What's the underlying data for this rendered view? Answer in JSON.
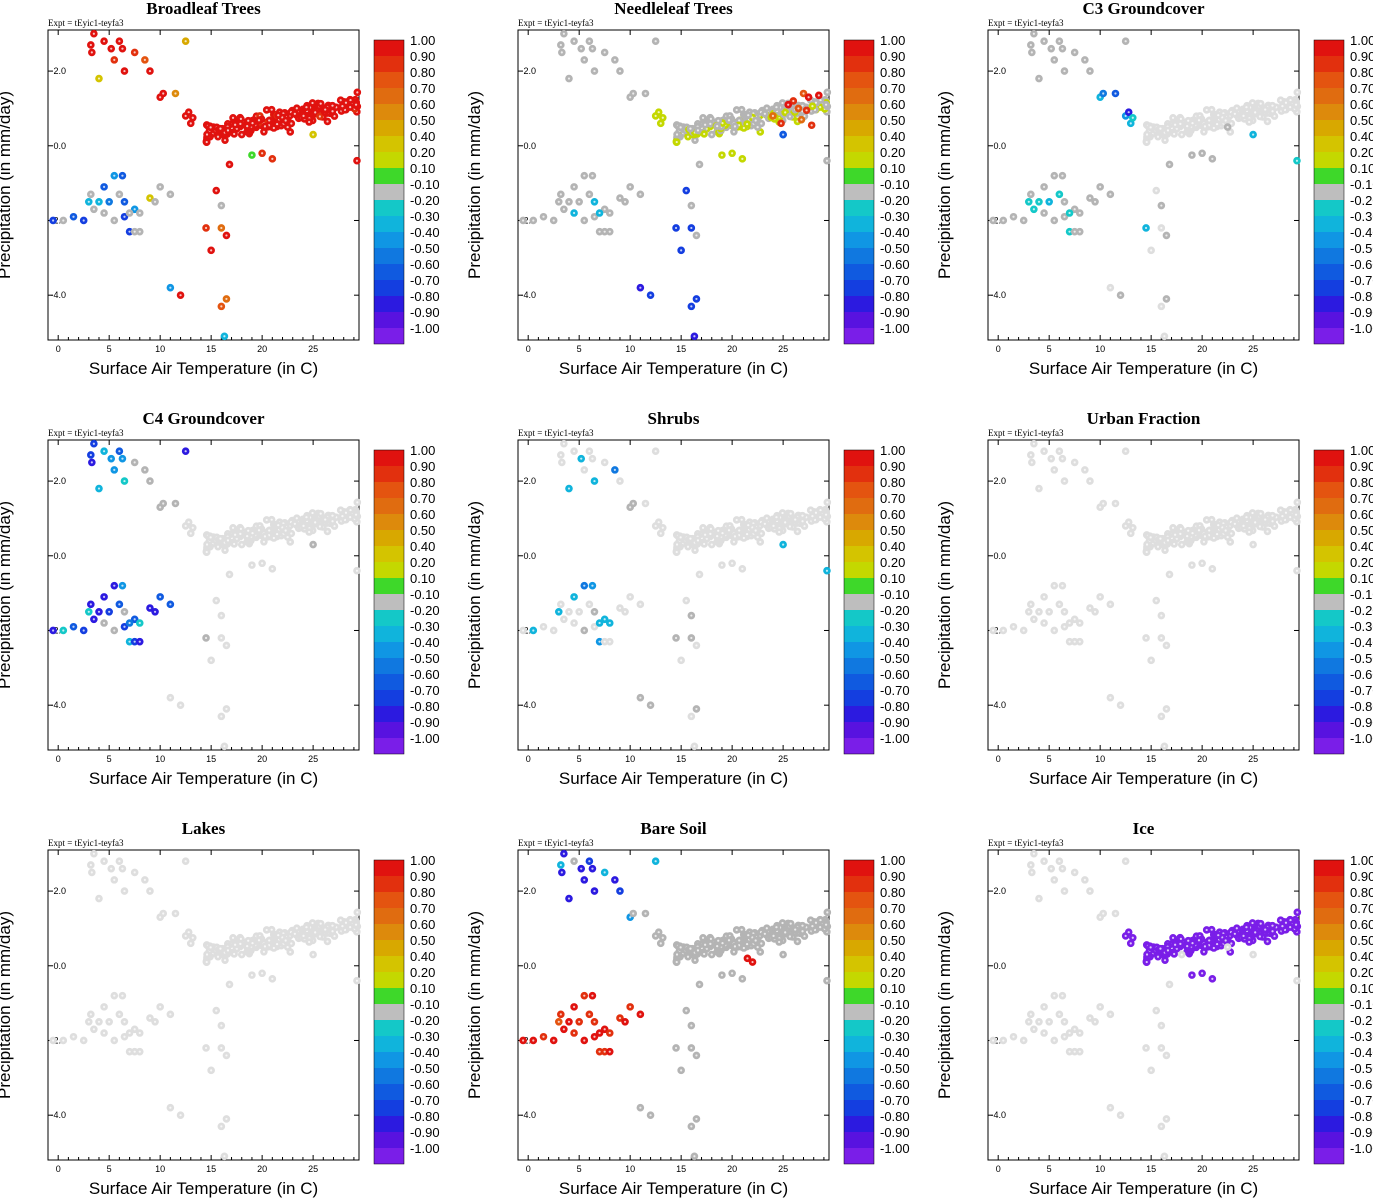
{
  "chart_data": [
    {
      "type": "scatter",
      "title": "Broadleaf Trees",
      "annotation": "Expt = tEyic1-teyfa3",
      "xlabel": "Surface Air Temperature (in C)",
      "ylabel": "Precipitation (in mm/day)",
      "warm_cluster_value": 0.95,
      "cold_values": [
        -0.7,
        -0.1,
        -0.6,
        -0.7,
        -0.35,
        -0.1,
        -0.35,
        -0.6,
        -0.5,
        -0.45,
        -0.1,
        -0.6,
        -0.7,
        -0.7,
        -0.45,
        -0.1,
        -0.1,
        -0.1,
        -0.1,
        -0.6,
        -0.1,
        -0.1,
        -0.1,
        0.3,
        -0.1,
        -0.1,
        -0.1
      ],
      "upper_values": [
        0.95,
        0.95,
        0.4,
        0.95,
        0.95,
        0.95,
        0.9,
        0.95,
        0.95,
        0.95,
        0.9,
        0.75,
        0.95,
        0.95,
        0.95,
        0.55,
        0.45
      ],
      "mid_values": [
        0.95,
        0.95,
        0.95,
        0.95,
        0.1,
        0.9,
        0.9
      ],
      "sparse_values": [
        0.95,
        0.7,
        0.95,
        0.8,
        0.65,
        -0.35,
        -0.4,
        0.95,
        0.9,
        0.95,
        0.95,
        -0.1
      ],
      "outlier_values": [
        0.3,
        0.95,
        0.95,
        0.95
      ]
    },
    {
      "type": "scatter",
      "title": "Needleleaf Trees",
      "annotation": "Expt = tEyic1-teyfa3",
      "xlabel": "Surface Air Temperature (in C)",
      "ylabel": "Precipitation (in mm/day)",
      "warm_cluster_value": -0.1,
      "cold_values": [
        -0.1,
        -0.1,
        -0.1,
        -0.1,
        -0.1,
        -0.1,
        -0.1,
        -0.1,
        -0.1,
        -0.1,
        -0.1,
        -0.1,
        -0.1,
        -0.1,
        -0.1,
        -0.1,
        -0.1,
        -0.35,
        -0.1,
        -0.35,
        -0.35,
        -0.1,
        -0.1,
        -0.1,
        -0.1,
        -0.1,
        -0.1
      ],
      "upper_values": [
        -0.1,
        -0.1,
        -0.1,
        -0.1,
        -0.1,
        -0.1,
        -0.1,
        -0.1,
        -0.1,
        -0.1,
        -0.1,
        -0.1,
        -0.1,
        -0.1,
        -0.1,
        -0.1,
        -0.1
      ],
      "mid_values": [
        0.15,
        0.15,
        0.15,
        0.15,
        0.15,
        0.15,
        0.15
      ],
      "sparse_values": [
        -0.7,
        -0.75,
        -0.7,
        -0.7,
        -0.75,
        -0.8,
        -0.8,
        -0.75,
        -0.75,
        -0.1,
        -0.1,
        -0.1
      ],
      "outlier_values": [
        -0.65,
        -0.1,
        -0.1,
        -0.1
      ],
      "green_band_value": 0.15,
      "hot_values": [
        0.9,
        0.75,
        0.8,
        0.95,
        0.65,
        0.95,
        0.7,
        0.9,
        0.95,
        -0.6,
        0.85,
        0.9
      ]
    },
    {
      "type": "scatter",
      "title": "C3 Groundcover",
      "annotation": "Expt = tEyic1-teyfa3",
      "xlabel": "Surface Air Temperature (in C)",
      "ylabel": "Precipitation (in mm/day)",
      "warm_cluster_value": -0.05,
      "cold_values": [
        -0.1,
        -0.1,
        -0.1,
        -0.1,
        -0.25,
        -0.1,
        -0.25,
        -0.1,
        -0.3,
        -0.1,
        -0.25,
        -0.1,
        -0.1,
        -0.25,
        -0.1,
        -0.1,
        -0.25,
        -0.1,
        -0.1,
        -0.1,
        -0.25,
        -0.1,
        -0.1,
        -0.1,
        -0.1,
        -0.1,
        -0.1
      ],
      "upper_values": [
        -0.1,
        -0.1,
        -0.1,
        -0.1,
        -0.1,
        -0.1,
        -0.1,
        -0.1,
        -0.1,
        -0.1,
        -0.1,
        -0.1,
        -0.1,
        -0.3,
        -0.55,
        -0.65,
        -0.1
      ],
      "mid_values": [
        -0.45,
        -0.8,
        -0.3,
        -0.25,
        -0.1,
        -0.1,
        -0.1
      ],
      "sparse_values": [
        -0.05,
        -0.05,
        -0.05,
        -0.05,
        -0.1,
        -0.05,
        -0.05,
        -0.1,
        -0.3,
        -0.1,
        -0.1,
        -0.1
      ],
      "outlier_values": [
        -0.3,
        -0.25,
        -0.1,
        -0.05
      ]
    },
    {
      "type": "scatter",
      "title": "C4 Groundcover",
      "annotation": "Expt = tEyic1-teyfa3",
      "xlabel": "Surface Air Temperature (in C)",
      "ylabel": "Precipitation (in mm/day)",
      "warm_cluster_value": -0.05,
      "cold_values": [
        -0.85,
        -0.2,
        -0.6,
        -0.75,
        -0.2,
        -0.8,
        -0.85,
        -0.85,
        -0.7,
        -0.8,
        -0.6,
        -0.45,
        -0.75,
        -0.3,
        -0.65,
        -0.2,
        -0.85,
        -0.1,
        -0.1,
        -0.1,
        -0.5,
        -0.75,
        -0.85,
        -0.85,
        -0.85,
        -0.65,
        -0.6
      ],
      "upper_values": [
        -0.75,
        -0.7,
        -0.3,
        -0.85,
        -0.35,
        -0.4,
        -0.4,
        -0.6,
        -0.45,
        -0.25,
        -0.1,
        -0.1,
        -0.1,
        -0.1,
        -0.1,
        -0.1,
        -0.85
      ],
      "mid_values": [
        -0.05,
        -0.05,
        -0.05,
        -0.05,
        -0.05,
        -0.05,
        -0.05
      ],
      "sparse_values": [
        -0.05,
        -0.05,
        -0.05,
        -0.05,
        -0.05,
        -0.05,
        -0.05,
        -0.05,
        -0.1,
        -0.05,
        -0.05,
        -0.05
      ],
      "outlier_values": [
        -0.1,
        -0.05,
        -0.05,
        -0.05
      ]
    },
    {
      "type": "scatter",
      "title": "Shrubs",
      "annotation": "Expt = tEyic1-teyfa3",
      "xlabel": "Surface Air Temperature (in C)",
      "ylabel": "Precipitation (in mm/day)",
      "warm_cluster_value": -0.05,
      "cold_values": [
        -0.05,
        -0.3,
        -0.05,
        -0.05,
        -0.3,
        -0.05,
        -0.05,
        -0.3,
        -0.05,
        -0.55,
        -0.05,
        -0.45,
        -0.05,
        -0.45,
        -0.3,
        -0.3,
        -0.05,
        -0.05,
        -0.1,
        -0.1,
        -0.3,
        -0.05,
        -0.05,
        -0.05,
        -0.05,
        -0.05,
        -0.05
      ],
      "upper_values": [
        -0.05,
        -0.05,
        -0.3,
        -0.05,
        -0.05,
        -0.3,
        -0.05,
        -0.05,
        -0.05,
        -0.3,
        -0.05,
        -0.55,
        -0.05,
        -0.1,
        -0.1,
        -0.05,
        -0.05
      ],
      "mid_values": [
        -0.05,
        -0.05,
        -0.05,
        -0.05,
        -0.05,
        -0.05,
        -0.05
      ],
      "sparse_values": [
        -0.05,
        -0.1,
        -0.05,
        -0.05,
        -0.1,
        -0.05,
        -0.1,
        -0.1,
        -0.1,
        -0.05,
        -0.05,
        -0.1
      ],
      "outlier_values": [
        -0.3,
        -0.3,
        -0.05,
        -0.05
      ]
    },
    {
      "type": "scatter",
      "title": "Urban Fraction",
      "annotation": "Expt = tEyic1-teyfa3",
      "xlabel": "Surface Air Temperature (in C)",
      "ylabel": "Precipitation (in mm/day)",
      "uniform_value": -0.05
    },
    {
      "type": "scatter",
      "title": "Lakes",
      "annotation": "Expt = tEyic1-teyfa3",
      "xlabel": "Surface Air Temperature (in C)",
      "ylabel": "Precipitation (in mm/day)",
      "uniform_value": -0.05
    },
    {
      "type": "scatter",
      "title": "Bare Soil",
      "annotation": "Expt = tEyic1-teyfa3",
      "xlabel": "Surface Air Temperature (in C)",
      "ylabel": "Precipitation (in mm/day)",
      "warm_cluster_value": -0.1,
      "cold_values": [
        0.95,
        0.95,
        0.9,
        0.95,
        0.75,
        0.9,
        0.95,
        0.95,
        0.9,
        0.85,
        0.9,
        0.95,
        0.95,
        0.9,
        0.95,
        0.9,
        0.95,
        0.9,
        0.95,
        0.9,
        0.95,
        0.9,
        0.95,
        0.9,
        0.95,
        0.9,
        0.95
      ],
      "upper_values": [
        -0.85,
        -0.3,
        -0.85,
        -0.85,
        -0.1,
        -0.8,
        -0.8,
        -0.7,
        -0.85,
        -0.85,
        -0.35,
        -0.8,
        -0.75,
        -0.4,
        -0.1,
        -0.1,
        -0.3
      ],
      "mid_values": [
        -0.1,
        -0.1,
        -0.1,
        -0.1,
        -0.1,
        -0.1,
        -0.1
      ],
      "sparse_values": [
        -0.1,
        -0.1,
        -0.1,
        -0.1,
        -0.1,
        -0.1,
        -0.1,
        -0.1,
        -0.1,
        -0.1,
        -0.1,
        -0.1
      ],
      "outlier_values": [
        -0.1,
        -0.1,
        -0.1,
        -0.1
      ],
      "extra_values": [
        0.95,
        0.95
      ]
    },
    {
      "type": "scatter",
      "title": "Ice",
      "annotation": "Expt = tEyic1-teyfa3",
      "xlabel": "Surface Air Temperature (in C)",
      "ylabel": "Precipitation (in mm/day)",
      "warm_cluster_value": -0.95,
      "cold_values": [
        -0.05,
        -0.05,
        -0.05,
        -0.05,
        -0.05,
        -0.05,
        -0.05,
        -0.05,
        -0.05,
        -0.05,
        -0.05,
        -0.05,
        -0.05,
        -0.05,
        -0.05,
        -0.05,
        -0.05,
        -0.05,
        -0.05,
        -0.05,
        -0.05,
        -0.05,
        -0.05,
        -0.05,
        -0.05,
        -0.05,
        -0.05
      ],
      "upper_values": [
        -0.05,
        -0.05,
        -0.05,
        -0.05,
        -0.05,
        -0.05,
        -0.05,
        -0.05,
        -0.05,
        -0.05,
        -0.05,
        -0.05,
        -0.05,
        -0.05,
        -0.05,
        -0.05,
        -0.05
      ],
      "mid_values": [
        -0.95,
        -0.95,
        -0.95,
        -0.95,
        -0.95,
        -0.95,
        -0.95
      ],
      "sparse_values": [
        -0.05,
        -0.05,
        -0.05,
        -0.05,
        -0.05,
        -0.05,
        -0.05,
        -0.05,
        -0.05,
        -0.05,
        -0.05,
        -0.05
      ],
      "outlier_values": [
        -0.05,
        -0.05,
        -0.05,
        -0.05
      ]
    }
  ],
  "shared_points": {
    "cold": [
      [
        -0.5,
        -2.0
      ],
      [
        0.5,
        -2.0
      ],
      [
        1.5,
        -1.9
      ],
      [
        2.5,
        -2.0
      ],
      [
        3,
        -1.5
      ],
      [
        3.2,
        -1.3
      ],
      [
        4,
        -1.5
      ],
      [
        4.5,
        -1.1
      ],
      [
        5,
        -1.5
      ],
      [
        5.5,
        -0.8
      ],
      [
        6,
        -1.3
      ],
      [
        6.3,
        -0.8
      ],
      [
        6.5,
        -1.9
      ],
      [
        7,
        -2.3
      ],
      [
        7.5,
        -1.7
      ],
      [
        8,
        -1.8
      ],
      [
        3.5,
        -1.7
      ],
      [
        4.5,
        -1.8
      ],
      [
        5.5,
        -2.0
      ],
      [
        6.5,
        -1.5
      ],
      [
        7,
        -1.8
      ],
      [
        7.5,
        -2.3
      ],
      [
        8,
        -2.3
      ],
      [
        9,
        -1.4
      ],
      [
        9.5,
        -1.5
      ],
      [
        10,
        -1.1
      ],
      [
        11,
        -1.3
      ]
    ],
    "upper": [
      [
        3.5,
        3.0
      ],
      [
        3.2,
        2.7
      ],
      [
        4,
        1.8
      ],
      [
        3.3,
        2.5
      ],
      [
        4.5,
        2.8
      ],
      [
        5.2,
        2.6
      ],
      [
        5.5,
        2.3
      ],
      [
        6,
        2.8
      ],
      [
        6.3,
        2.6
      ],
      [
        6.5,
        2.0
      ],
      [
        7.5,
        2.5
      ],
      [
        8.5,
        2.3
      ],
      [
        9,
        2.0
      ],
      [
        10,
        1.3
      ],
      [
        10.3,
        1.4
      ],
      [
        11.5,
        1.4
      ],
      [
        12.5,
        2.8
      ]
    ],
    "mid": [
      [
        12.5,
        0.8
      ],
      [
        12.8,
        0.9
      ],
      [
        13,
        0.6
      ],
      [
        13.2,
        0.75
      ],
      [
        19,
        -0.25
      ],
      [
        20,
        -0.2
      ],
      [
        21,
        -0.35
      ]
    ],
    "sparse": [
      [
        15.5,
        -1.2
      ],
      [
        16,
        -2.2
      ],
      [
        15,
        -2.8
      ],
      [
        16,
        -4.3
      ],
      [
        16.5,
        -4.1
      ],
      [
        16.3,
        -5.1
      ],
      [
        11,
        -3.8
      ],
      [
        12,
        -4.0
      ],
      [
        14.5,
        -2.2
      ],
      [
        16.5,
        -2.4
      ],
      [
        16.8,
        -0.5
      ],
      [
        16,
        -1.6
      ]
    ],
    "outlier": [
      [
        25,
        0.3
      ],
      [
        29.3,
        -0.4
      ],
      [
        22.5,
        0.5
      ],
      [
        18,
        0.3
      ]
    ],
    "extra": [
      [
        21.5,
        0.2
      ],
      [
        22,
        0.1
      ]
    ]
  },
  "warm_cluster": {
    "x_range": [
      14.5,
      29.8
    ],
    "trend": {
      "y_at_15": 0.35,
      "slope": 0.055
    },
    "spread": 0.45,
    "count": 230
  },
  "axes": {
    "xlim": [
      -1,
      29.5
    ],
    "ylim": [
      -5.2,
      3.1
    ],
    "xticks": [
      0,
      5,
      10,
      15,
      20,
      25
    ],
    "xtick_labels": [
      "0",
      "5",
      "10",
      "15",
      "20",
      "25"
    ],
    "yticks": [
      2,
      0,
      -2,
      -4
    ],
    "ytick_labels": [
      "2.0",
      "0.0",
      "-2.0",
      "-4.0"
    ]
  },
  "colorbar": {
    "labels": [
      "1.00",
      "0.90",
      "0.80",
      "0.70",
      "0.60",
      "0.50",
      "0.40",
      "0.20",
      "0.10",
      "-0.10",
      "-0.20",
      "-0.30",
      "-0.40",
      "-0.50",
      "-0.60",
      "-0.70",
      "-0.80",
      "-0.90",
      "-1.00"
    ],
    "colors": [
      "#e0120f",
      "#e2300e",
      "#e45410",
      "#e06c10",
      "#dd8a0c",
      "#d8a800",
      "#d4c400",
      "#c4d800",
      "#3ed82a",
      "#bebebe",
      "#14c8c8",
      "#10b4dc",
      "#1096e4",
      "#1078e0",
      "#105ae0",
      "#143ee0",
      "#2c1ae0",
      "#5812e0",
      "#7a1ee8"
    ]
  },
  "neutral_colors": {
    "gray": "#b4b4b4",
    "light": "#dedede"
  }
}
